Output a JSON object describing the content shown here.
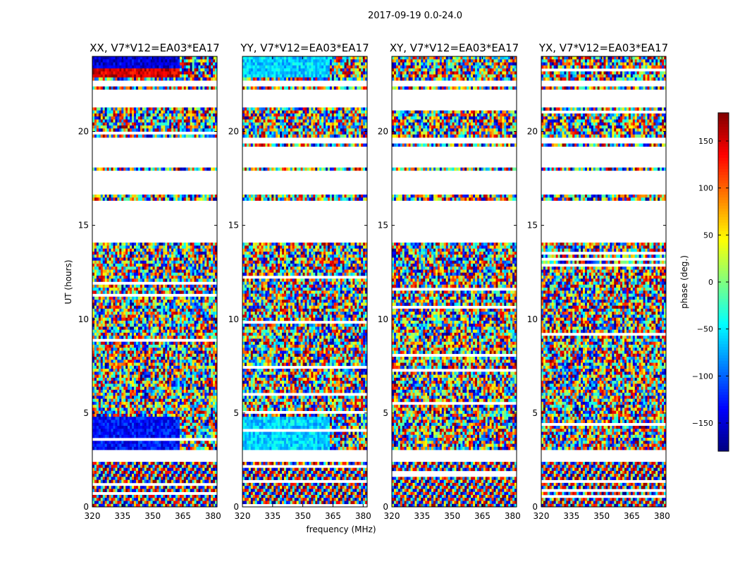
{
  "figure_title": "2017-09-19 0.0-24.0",
  "chart_data": {
    "type": "heatmap",
    "xlabel": "frequency (MHz)",
    "ylabel": "UT (hours)",
    "xlim": [
      320,
      382
    ],
    "ylim": [
      0,
      24
    ],
    "xticks": [
      320,
      335,
      350,
      365,
      380
    ],
    "yticks": [
      0,
      5,
      10,
      15,
      20
    ],
    "panels": [
      {
        "title": "XX, V7*V12=EA03*EA17",
        "pol": "XX"
      },
      {
        "title": "YY, V7*V12=EA03*EA17",
        "pol": "YY"
      },
      {
        "title": "XY, V7*V12=EA03*EA17",
        "pol": "XY"
      },
      {
        "title": "YX, V7*V12=EA03*EA17",
        "pol": "YX"
      }
    ],
    "colorbar": {
      "label": "phase (deg.)",
      "range": [
        -180,
        180
      ],
      "ticks": [
        -150,
        -100,
        -50,
        0,
        50,
        100,
        150
      ],
      "colormap": "jet"
    },
    "data_gaps_ut_hours": [
      [
        2.4,
        3.0
      ],
      [
        14.1,
        16.4
      ],
      [
        16.6,
        17.9
      ],
      [
        18.1,
        19.2
      ],
      [
        19.4,
        19.7
      ],
      [
        21.3,
        22.2
      ],
      [
        22.4,
        22.8
      ]
    ]
  }
}
